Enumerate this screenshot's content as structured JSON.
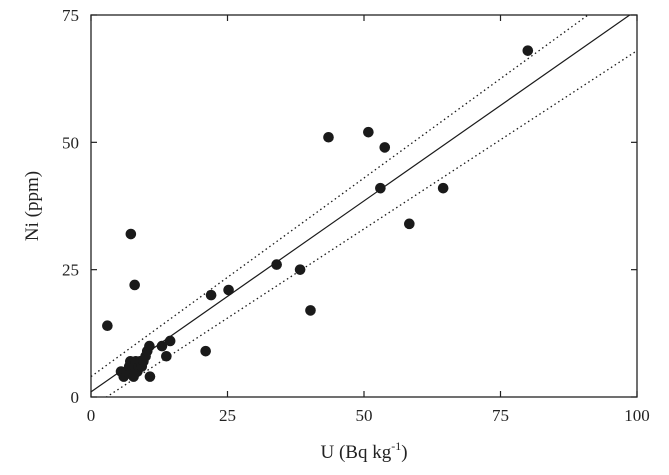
{
  "chart_data": {
    "type": "scatter",
    "xlabel": "U (Bq kg",
    "xlabel_sup": "-1",
    "xlabel_end": ")",
    "ylabel": "Ni (ppm)",
    "xlim": [
      0,
      100
    ],
    "ylim": [
      0,
      75
    ],
    "xticks": [
      0,
      25,
      50,
      75,
      100
    ],
    "yticks": [
      0,
      25,
      50,
      75
    ],
    "xtick_labels": [
      "0",
      "25",
      "50",
      "75",
      "100"
    ],
    "ytick_labels": [
      "0",
      "25",
      "50",
      "75"
    ],
    "grid": false,
    "colors": {
      "points": "#1a1a1a",
      "lines": "#1a1a1a",
      "frame": "#222222"
    },
    "points": [
      {
        "x": 3,
        "y": 14
      },
      {
        "x": 7.3,
        "y": 32
      },
      {
        "x": 8,
        "y": 22
      },
      {
        "x": 5.5,
        "y": 5
      },
      {
        "x": 6,
        "y": 4
      },
      {
        "x": 6.5,
        "y": 5
      },
      {
        "x": 7,
        "y": 6
      },
      {
        "x": 7.2,
        "y": 7
      },
      {
        "x": 7.5,
        "y": 5
      },
      {
        "x": 7.8,
        "y": 4
      },
      {
        "x": 8,
        "y": 6
      },
      {
        "x": 8.2,
        "y": 7
      },
      {
        "x": 8.5,
        "y": 5
      },
      {
        "x": 8.8,
        "y": 6
      },
      {
        "x": 9,
        "y": 7
      },
      {
        "x": 9.3,
        "y": 6
      },
      {
        "x": 9.6,
        "y": 7
      },
      {
        "x": 10,
        "y": 8
      },
      {
        "x": 10.3,
        "y": 9
      },
      {
        "x": 10.7,
        "y": 10
      },
      {
        "x": 10.8,
        "y": 4
      },
      {
        "x": 13,
        "y": 10
      },
      {
        "x": 13.8,
        "y": 8
      },
      {
        "x": 14.5,
        "y": 11
      },
      {
        "x": 21,
        "y": 9
      },
      {
        "x": 22,
        "y": 20
      },
      {
        "x": 25.2,
        "y": 21
      },
      {
        "x": 34,
        "y": 26
      },
      {
        "x": 38.3,
        "y": 25
      },
      {
        "x": 40.2,
        "y": 17
      },
      {
        "x": 43.5,
        "y": 51
      },
      {
        "x": 50.8,
        "y": 52
      },
      {
        "x": 53,
        "y": 41
      },
      {
        "x": 53.8,
        "y": 49
      },
      {
        "x": 58.3,
        "y": 34
      },
      {
        "x": 64.5,
        "y": 41
      },
      {
        "x": 80,
        "y": 68
      }
    ],
    "regression": {
      "intercept": 1,
      "slope": 0.75
    },
    "confidence_band": [
      {
        "intercept": 4,
        "slope": 0.78
      },
      {
        "intercept": -2,
        "slope": 0.7
      }
    ]
  }
}
